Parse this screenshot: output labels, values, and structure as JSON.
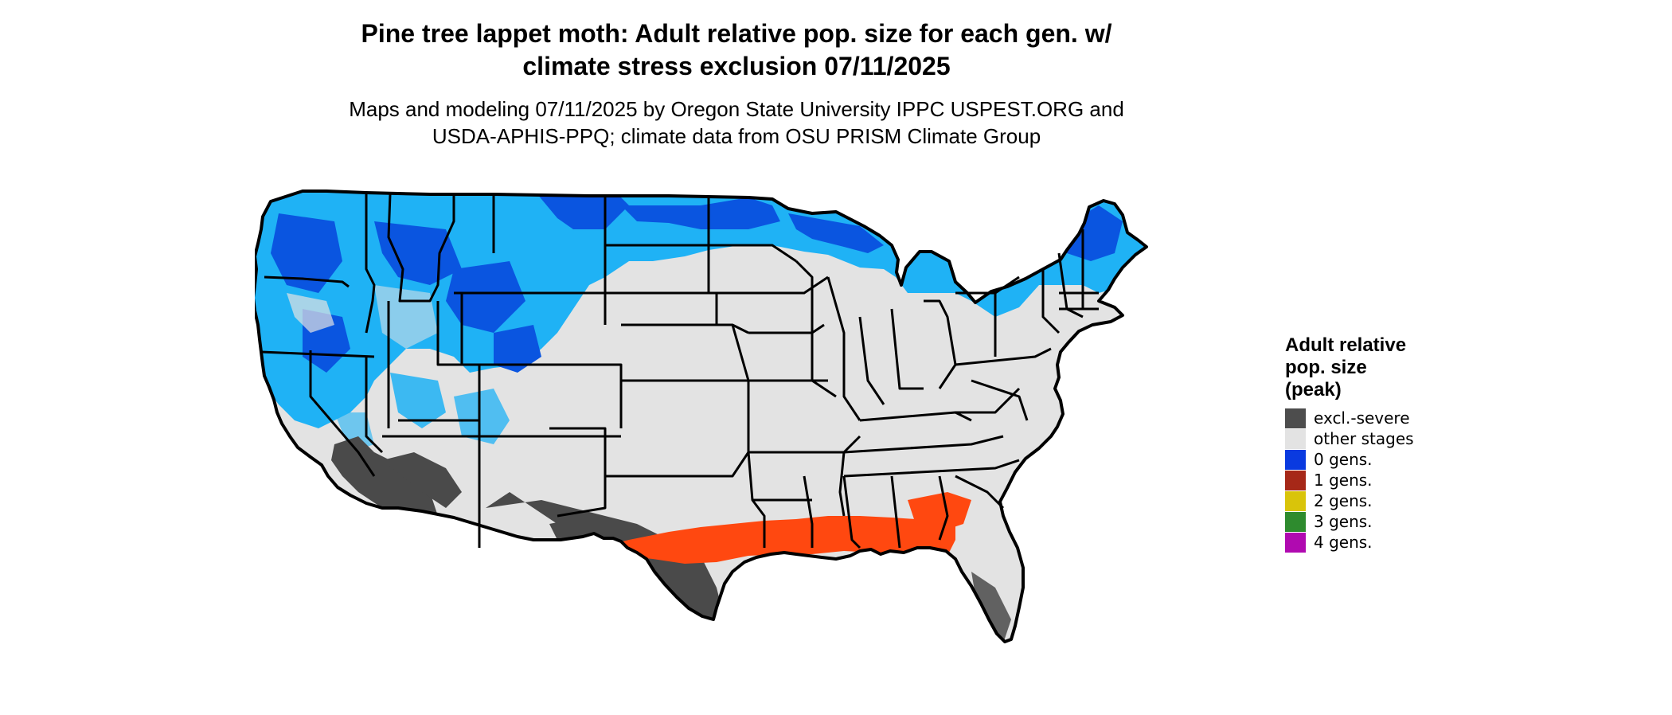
{
  "header": {
    "title": "Pine tree lappet moth: Adult relative pop. size for each gen. w/ climate stress exclusion 07/11/2025",
    "subtitle": "Maps and modeling 07/11/2025 by Oregon State University IPPC USPEST.ORG and USDA-APHIS-PPQ; climate data from OSU PRISM Climate Group"
  },
  "map": {
    "region": "Contiguous United States",
    "colors": {
      "land": "#e3e3e3",
      "border": "#000000",
      "cool_blue": "#1fb2f5",
      "deep_blue": "#0a55e0",
      "red_orange": "#ff4810",
      "dark_gray": "#4a4a4a"
    }
  },
  "legend": {
    "title": "Adult relative pop. size (peak)",
    "items": [
      {
        "label": "excl.-severe",
        "color": "#4d4d4d"
      },
      {
        "label": "other stages",
        "color": "#e3e3e3"
      },
      {
        "label": "0 gens.",
        "color": "#0a3ae0"
      },
      {
        "label": "1 gens.",
        "color": "#a62818"
      },
      {
        "label": "2 gens.",
        "color": "#d9c40a"
      },
      {
        "label": "3 gens.",
        "color": "#2e8b2e"
      },
      {
        "label": "4 gens.",
        "color": "#b00ab0"
      }
    ]
  }
}
